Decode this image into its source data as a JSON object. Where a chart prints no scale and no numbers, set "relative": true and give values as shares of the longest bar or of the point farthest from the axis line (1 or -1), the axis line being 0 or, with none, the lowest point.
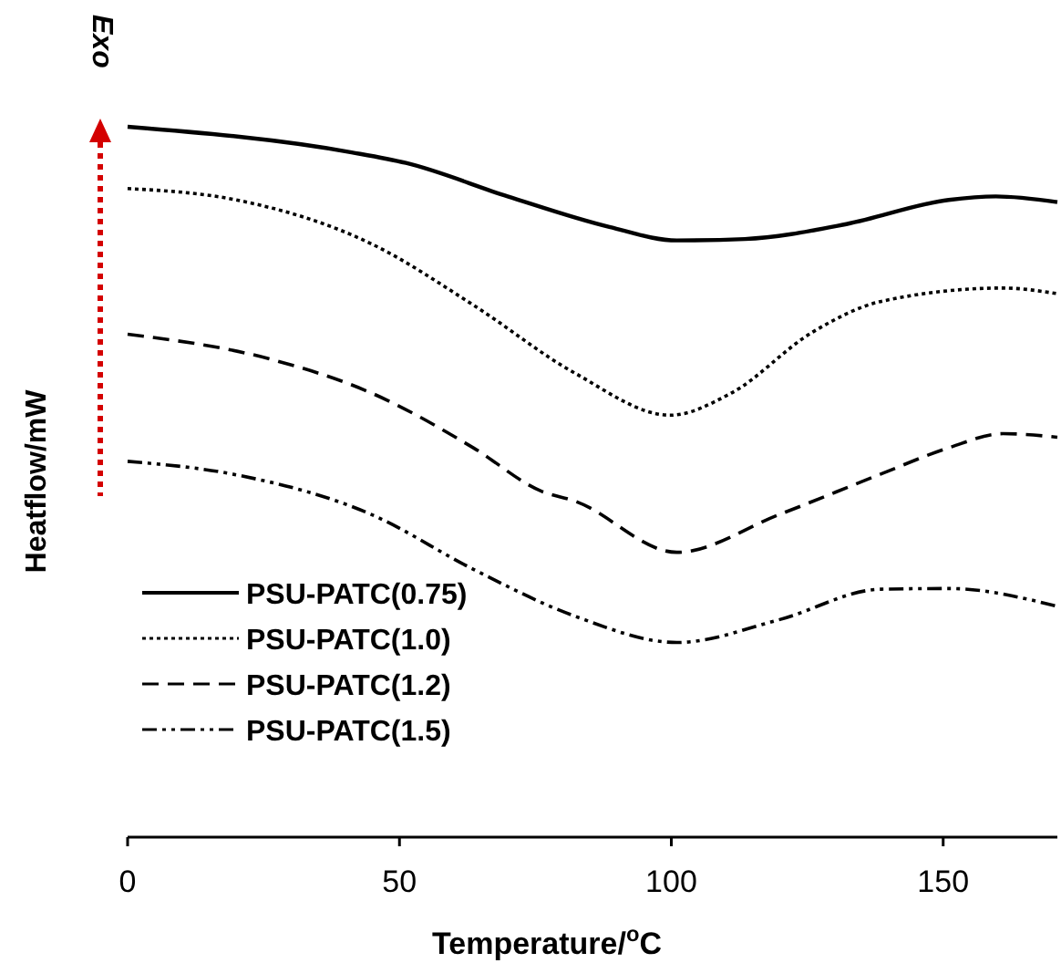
{
  "chart_data": {
    "type": "line",
    "relative": true,
    "xlabel": "Temperature/$^{o}$C",
    "ylabel": "Heatflow/mW",
    "annotations": [
      "Exo"
    ],
    "xlim": [
      0,
      171
    ],
    "xticks": [
      0,
      50,
      100,
      150
    ],
    "legend": "bottom left",
    "marker": "none",
    "series": [
      {
        "name": "PSU-PATC(0.75)",
        "color": "#000000",
        "line_style": "solid",
        "x": [
          0,
          41.2,
          51.2,
          69.9,
          88.6,
          101,
          113.5,
          132.2,
          151,
          159.7,
          171
        ],
        "values": [
          1.0,
          0.964,
          0.949,
          0.902,
          0.859,
          0.84,
          0.842,
          0.863,
          0.897,
          0.902,
          0.894
        ]
      },
      {
        "name": "PSU-PATC(1.0)",
        "color": "#000000",
        "line_style": "dotted",
        "x": [
          0,
          20,
          44.9,
          63.6,
          82.3,
          99.8,
          111,
          126,
          138.5,
          161,
          171
        ],
        "values": [
          0.913,
          0.897,
          0.835,
          0.749,
          0.653,
          0.594,
          0.625,
          0.711,
          0.754,
          0.773,
          0.765
        ]
      },
      {
        "name": "PSU-PATC(1.2)",
        "color": "#000000",
        "line_style": "dashed",
        "x": [
          0,
          26.2,
          44.9,
          63.6,
          76.1,
          82.3,
          101,
          119.8,
          138.5,
          151,
          161,
          171
        ],
        "values": [
          0.708,
          0.673,
          0.625,
          0.548,
          0.487,
          0.473,
          0.401,
          0.454,
          0.511,
          0.548,
          0.568,
          0.563
        ]
      },
      {
        "name": "PSU-PATC(1.5)",
        "color": "#000000",
        "line_style": "dashdot",
        "x": [
          0,
          20,
          44.9,
          63.6,
          82.3,
          101,
          119.8,
          138.5,
          151,
          171
        ],
        "values": [
          0.529,
          0.51,
          0.454,
          0.377,
          0.311,
          0.274,
          0.306,
          0.349,
          0.35,
          0.325
        ]
      }
    ]
  }
}
